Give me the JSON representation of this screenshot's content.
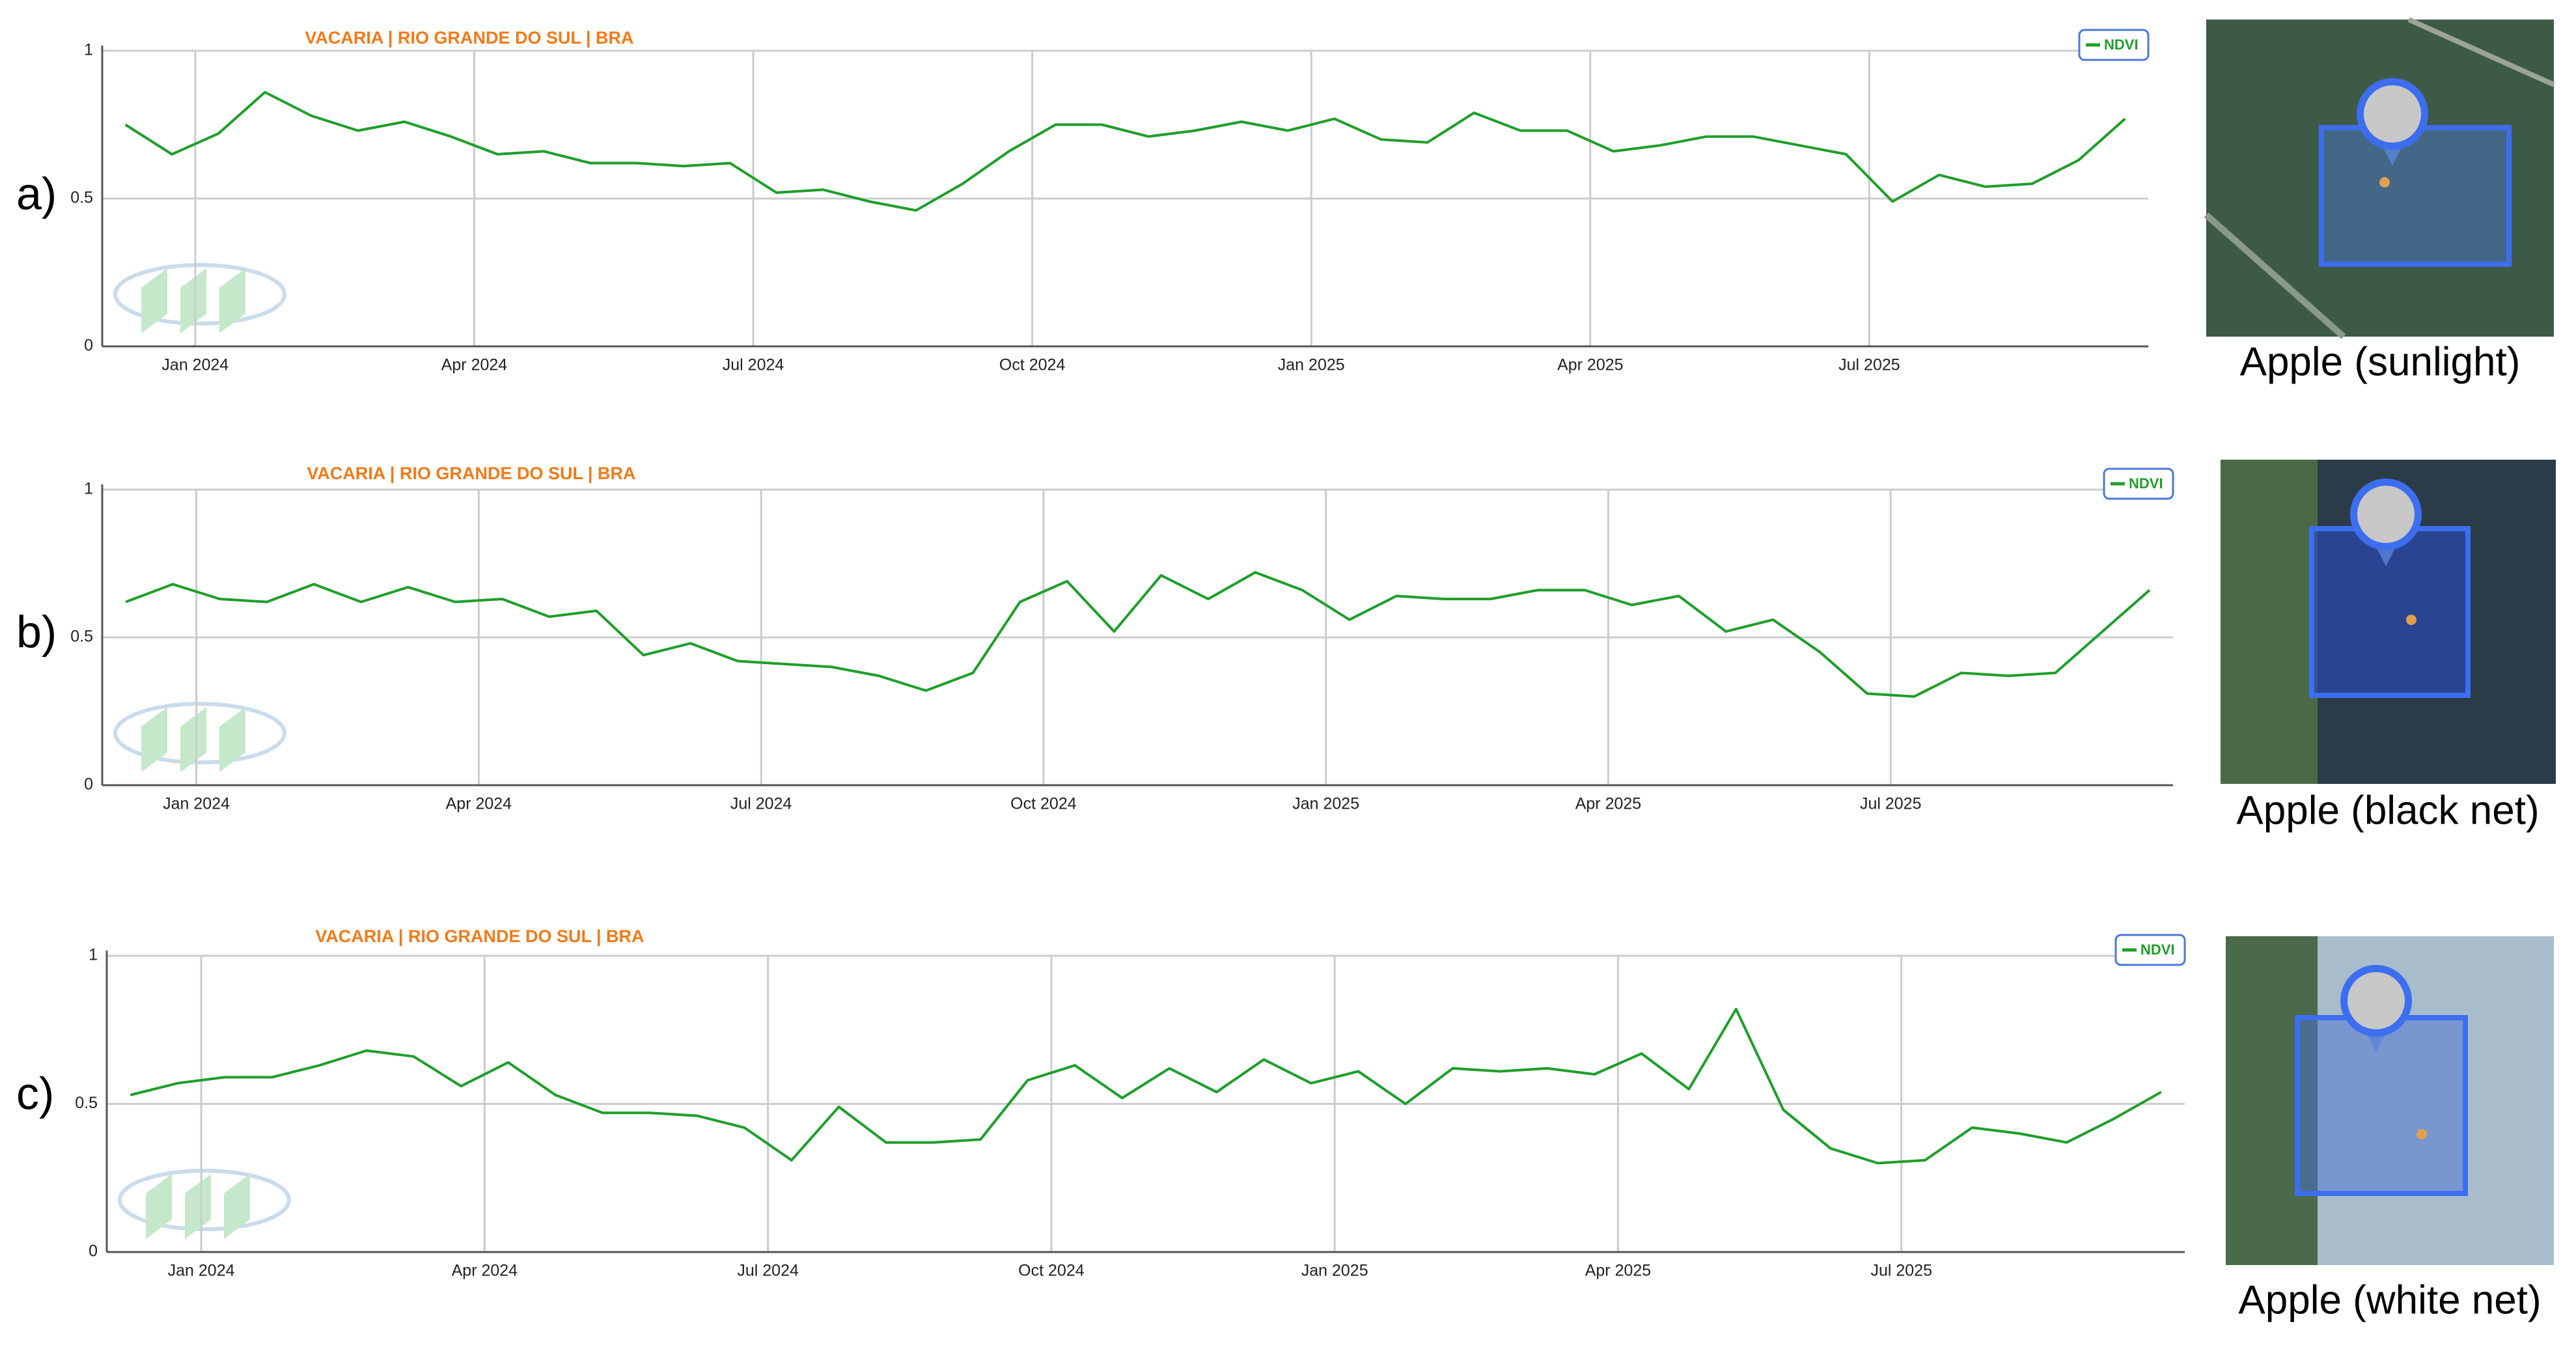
{
  "chart_data": [
    {
      "type": "line",
      "title": "VACARIA | RIO GRANDE DO SUL | BRA",
      "x": [
        "2023-12",
        "2023-12",
        "2024-01",
        "2024-01",
        "2024-02",
        "2024-02",
        "2024-03",
        "2024-03",
        "2024-04",
        "2024-04",
        "2024-05",
        "2024-05",
        "2024-06",
        "2024-06",
        "2024-07",
        "2024-07",
        "2024-08",
        "2024-08",
        "2024-09",
        "2024-09",
        "2024-10",
        "2024-10",
        "2024-11",
        "2024-11",
        "2024-12",
        "2024-12",
        "2025-01",
        "2025-01",
        "2025-02",
        "2025-02",
        "2025-03",
        "2025-03",
        "2025-04",
        "2025-04",
        "2025-05",
        "2025-05",
        "2025-06",
        "2025-06",
        "2025-07",
        "2025-07",
        "2025-08",
        "2025-08",
        "2025-09",
        "2025-09"
      ],
      "series": [
        {
          "name": "NDVI",
          "color": "#1f9e2c",
          "values": [
            0.75,
            0.65,
            0.72,
            0.86,
            0.78,
            0.73,
            0.76,
            0.71,
            0.65,
            0.66,
            0.62,
            0.62,
            0.61,
            0.62,
            0.52,
            0.53,
            0.49,
            0.46,
            0.55,
            0.66,
            0.75,
            0.75,
            0.71,
            0.73,
            0.76,
            0.73,
            0.77,
            0.7,
            0.69,
            0.79,
            0.73,
            0.73,
            0.66,
            0.68,
            0.71,
            0.71,
            0.68,
            0.65,
            0.49,
            0.58,
            0.54,
            0.55,
            0.63,
            0.77
          ]
        }
      ],
      "xlim": [
        "2023-12",
        "2025-10"
      ],
      "xticks": [
        {
          "value": "2024-01",
          "label": "Jan 2024"
        },
        {
          "value": "2024-04",
          "label": "Apr 2024"
        },
        {
          "value": "2024-07",
          "label": "Jul 2024"
        },
        {
          "value": "2024-10",
          "label": "Oct 2024"
        },
        {
          "value": "2025-01",
          "label": "Jan 2025"
        },
        {
          "value": "2025-04",
          "label": "Apr 2025"
        },
        {
          "value": "2025-07",
          "label": "Jul 2025"
        }
      ],
      "ylim": [
        0,
        1
      ],
      "yticks": [
        0,
        0.5,
        1
      ],
      "grid": true,
      "legend": "top right"
    },
    {
      "type": "line",
      "title": "VACARIA | RIO GRANDE DO SUL | BRA",
      "x": [
        "2023-12",
        "2023-12",
        "2024-01",
        "2024-01",
        "2024-02",
        "2024-02",
        "2024-03",
        "2024-03",
        "2024-04",
        "2024-04",
        "2024-05",
        "2024-05",
        "2024-06",
        "2024-06",
        "2024-07",
        "2024-07",
        "2024-08",
        "2024-08",
        "2024-09",
        "2024-09",
        "2024-10",
        "2024-10",
        "2024-11",
        "2024-11",
        "2024-12",
        "2024-12",
        "2025-01",
        "2025-01",
        "2025-02",
        "2025-02",
        "2025-03",
        "2025-03",
        "2025-04",
        "2025-04",
        "2025-05",
        "2025-05",
        "2025-06",
        "2025-06",
        "2025-07",
        "2025-07",
        "2025-08",
        "2025-08",
        "2025-09",
        "2025-09"
      ],
      "series": [
        {
          "name": "NDVI",
          "color": "#1f9e2c",
          "values": [
            0.62,
            0.68,
            0.63,
            0.62,
            0.68,
            0.62,
            0.67,
            0.62,
            0.63,
            0.57,
            0.59,
            0.44,
            0.48,
            0.42,
            0.41,
            0.4,
            0.37,
            0.32,
            0.38,
            0.62,
            0.69,
            0.52,
            0.71,
            0.63,
            0.72,
            0.66,
            0.56,
            0.64,
            0.63,
            0.63,
            0.66,
            0.66,
            0.61,
            0.64,
            0.52,
            0.56,
            0.45,
            0.31,
            0.3,
            0.38,
            0.37,
            0.38,
            0.52,
            0.66
          ]
        }
      ],
      "xlim": [
        "2023-12",
        "2025-10"
      ],
      "xticks": [
        {
          "value": "2024-01",
          "label": "Jan 2024"
        },
        {
          "value": "2024-04",
          "label": "Apr 2024"
        },
        {
          "value": "2024-07",
          "label": "Jul 2024"
        },
        {
          "value": "2024-10",
          "label": "Oct 2024"
        },
        {
          "value": "2025-01",
          "label": "Jan 2025"
        },
        {
          "value": "2025-04",
          "label": "Apr 2025"
        },
        {
          "value": "2025-07",
          "label": "Jul 2025"
        }
      ],
      "ylim": [
        0,
        1
      ],
      "yticks": [
        0,
        0.5,
        1
      ],
      "grid": true,
      "legend": "top right"
    },
    {
      "type": "line",
      "title": "VACARIA | RIO GRANDE DO SUL | BRA",
      "x": [
        "2023-12",
        "2023-12",
        "2024-01",
        "2024-01",
        "2024-02",
        "2024-02",
        "2024-03",
        "2024-03",
        "2024-04",
        "2024-04",
        "2024-05",
        "2024-05",
        "2024-06",
        "2024-06",
        "2024-07",
        "2024-07",
        "2024-08",
        "2024-08",
        "2024-09",
        "2024-09",
        "2024-10",
        "2024-10",
        "2024-11",
        "2024-11",
        "2024-12",
        "2024-12",
        "2025-01",
        "2025-01",
        "2025-02",
        "2025-02",
        "2025-03",
        "2025-03",
        "2025-04",
        "2025-04",
        "2025-05",
        "2025-05",
        "2025-06",
        "2025-06",
        "2025-07",
        "2025-07",
        "2025-08",
        "2025-08",
        "2025-09",
        "2025-09"
      ],
      "series": [
        {
          "name": "NDVI",
          "color": "#1f9e2c",
          "values": [
            0.53,
            0.57,
            0.59,
            0.59,
            0.63,
            0.68,
            0.66,
            0.56,
            0.64,
            0.53,
            0.47,
            0.47,
            0.46,
            0.42,
            0.31,
            0.49,
            0.37,
            0.37,
            0.38,
            0.58,
            0.63,
            0.52,
            0.62,
            0.54,
            0.65,
            0.57,
            0.61,
            0.5,
            0.62,
            0.61,
            0.62,
            0.6,
            0.67,
            0.55,
            0.82,
            0.48,
            0.35,
            0.3,
            0.31,
            0.42,
            0.4,
            0.37,
            0.45,
            0.54
          ]
        }
      ],
      "xlim": [
        "2023-12",
        "2025-10"
      ],
      "xticks": [
        {
          "value": "2024-01",
          "label": "Jan 2024"
        },
        {
          "value": "2024-04",
          "label": "Apr 2024"
        },
        {
          "value": "2024-07",
          "label": "Jul 2024"
        },
        {
          "value": "2024-10",
          "label": "Oct 2024"
        },
        {
          "value": "2025-01",
          "label": "Jan 2025"
        },
        {
          "value": "2025-04",
          "label": "Apr 2025"
        },
        {
          "value": "2025-07",
          "label": "Jul 2025"
        }
      ],
      "ylim": [
        0,
        1
      ],
      "yticks": [
        0,
        0.5,
        1
      ],
      "grid": true,
      "legend": "top right"
    }
  ],
  "panels": [
    {
      "label": "a)",
      "caption": "Apple (sunlight)"
    },
    {
      "label": "b)",
      "caption": "Apple (black net)"
    },
    {
      "label": "c)",
      "caption": "Apple (white net)"
    }
  ]
}
